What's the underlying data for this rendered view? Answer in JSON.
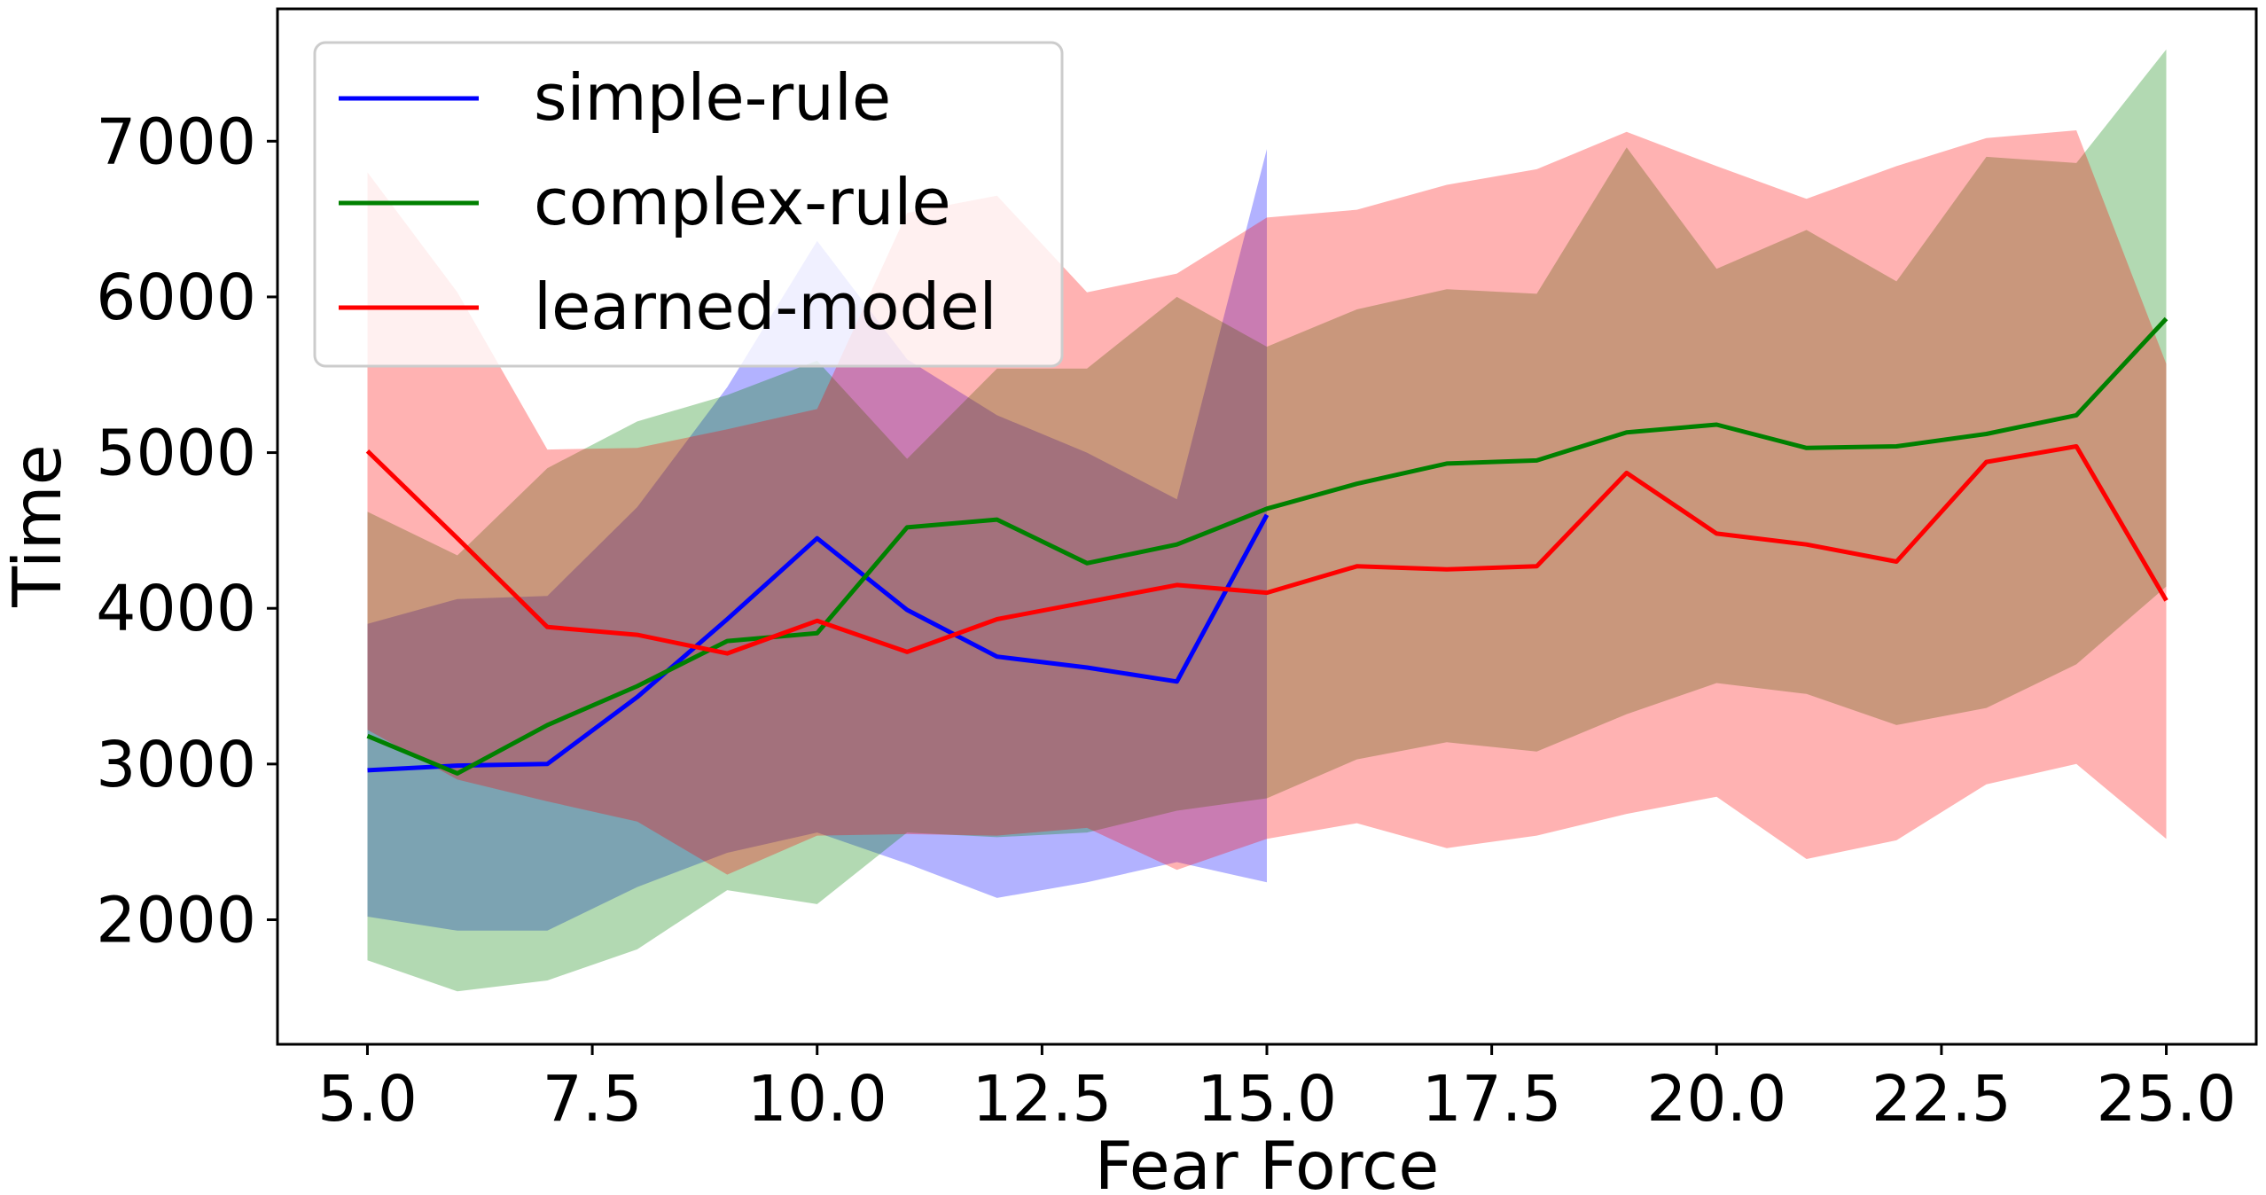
{
  "chart_data": {
    "type": "line",
    "title": "",
    "xlabel": "Fear Force",
    "ylabel": "Time",
    "xlim": [
      4.0,
      26.0
    ],
    "ylim": [
      1200,
      7850
    ],
    "xticks": [
      "5.0",
      "7.5",
      "10.0",
      "12.5",
      "15.0",
      "17.5",
      "20.0",
      "22.5",
      "25.0"
    ],
    "xtick_values": [
      5.0,
      7.5,
      10.0,
      12.5,
      15.0,
      17.5,
      20.0,
      22.5,
      25.0
    ],
    "yticks": [
      "2000",
      "3000",
      "4000",
      "5000",
      "6000",
      "7000"
    ],
    "ytick_values": [
      2000,
      3000,
      4000,
      5000,
      6000,
      7000
    ],
    "grid": false,
    "legend_position": "top-left",
    "series": [
      {
        "name": "simple-rule",
        "color": "#0000ff",
        "band_color": "#0000ff",
        "x": [
          5,
          6,
          7,
          8,
          9,
          10,
          11,
          12,
          13,
          14,
          15
        ],
        "values": [
          2960,
          2990,
          3000,
          3430,
          3930,
          4450,
          3990,
          3690,
          3620,
          3530,
          4600
        ],
        "lower": [
          2020,
          1930,
          1930,
          2210,
          2430,
          2560,
          2360,
          2140,
          2240,
          2370,
          2240
        ],
        "upper": [
          3900,
          4060,
          4080,
          4650,
          5420,
          6360,
          5600,
          5240,
          5000,
          4700,
          6950
        ]
      },
      {
        "name": "complex-rule",
        "color": "#008000",
        "band_color": "#008000",
        "x": [
          5,
          6,
          7,
          8,
          9,
          10,
          11,
          12,
          13,
          14,
          15,
          16,
          17,
          18,
          19,
          20,
          21,
          22,
          23,
          24,
          25
        ],
        "values": [
          3180,
          2940,
          3250,
          3500,
          3790,
          3840,
          4520,
          4570,
          4290,
          4410,
          4640,
          4800,
          4930,
          4950,
          5130,
          5180,
          5030,
          5040,
          5120,
          5240,
          5860
        ],
        "lower": [
          1740,
          1540,
          1610,
          1810,
          2190,
          2100,
          2560,
          2530,
          2560,
          2700,
          2780,
          3030,
          3140,
          3080,
          3320,
          3520,
          3450,
          3250,
          3360,
          3640,
          4140
        ],
        "upper": [
          4620,
          4340,
          4900,
          5200,
          5370,
          5590,
          4960,
          5540,
          5540,
          6000,
          5680,
          5920,
          6050,
          6020,
          6960,
          6180,
          6430,
          6100,
          6900,
          6860,
          7590
        ]
      },
      {
        "name": "learned-model",
        "color": "#ff0000",
        "band_color": "#ff0000",
        "x": [
          5,
          6,
          7,
          8,
          9,
          10,
          11,
          12,
          13,
          14,
          15,
          16,
          17,
          18,
          19,
          20,
          21,
          22,
          23,
          24,
          25
        ],
        "values": [
          5010,
          4450,
          3880,
          3830,
          3710,
          3920,
          3720,
          3930,
          4040,
          4150,
          4100,
          4270,
          4250,
          4270,
          4870,
          4480,
          4410,
          4300,
          4940,
          5040,
          4050
        ],
        "lower": [
          3220,
          2900,
          2760,
          2630,
          2290,
          2540,
          2550,
          2540,
          2590,
          2320,
          2520,
          2620,
          2460,
          2540,
          2680,
          2790,
          2390,
          2510,
          2870,
          3000,
          2520
        ],
        "upper": [
          6800,
          6030,
          5020,
          5030,
          5150,
          5280,
          6540,
          6650,
          6030,
          6150,
          6510,
          6560,
          6720,
          6820,
          7060,
          6840,
          6630,
          6840,
          7020,
          7070,
          5570
        ]
      }
    ]
  }
}
